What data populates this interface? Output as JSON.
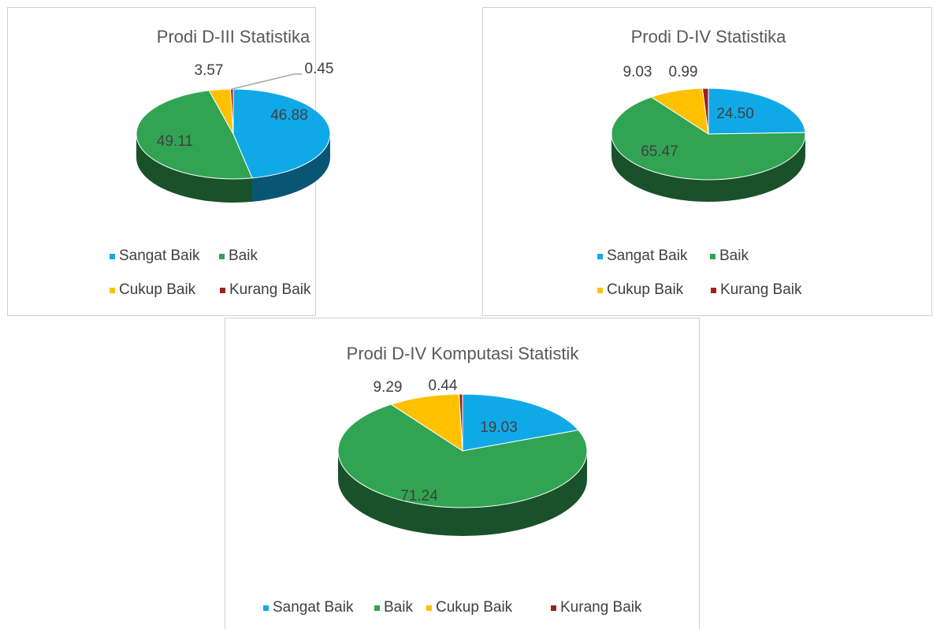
{
  "chart_data": [
    {
      "type": "pie",
      "title": "Prodi D-III Statistika",
      "categories": [
        "Sangat Baik",
        "Baik",
        "Cukup Baik",
        "Kurang Baik"
      ],
      "values": [
        46.88,
        49.11,
        3.57,
        0.45
      ],
      "colors": [
        "#10a9e8",
        "#31a453",
        "#ffc000",
        "#a0201c"
      ]
    },
    {
      "type": "pie",
      "title": "Prodi D-IV Statistika",
      "categories": [
        "Sangat Baik",
        "Baik",
        "Cukup Baik",
        "Kurang Baik"
      ],
      "values": [
        24.5,
        65.47,
        9.03,
        0.99
      ],
      "value_labels": [
        "24.50",
        "65.47",
        "9.03",
        "0.99"
      ],
      "colors": [
        "#10a9e8",
        "#31a453",
        "#ffc000",
        "#a0201c"
      ]
    },
    {
      "type": "pie",
      "title": "Prodi D-IV Komputasi Statistik",
      "categories": [
        "Sangat Baik",
        "Baik",
        "Cukup Baik",
        "Kurang Baik"
      ],
      "values": [
        19.03,
        71.24,
        9.29,
        0.44
      ],
      "colors": [
        "#10a9e8",
        "#31a453",
        "#ffc000",
        "#a0201c"
      ]
    }
  ]
}
